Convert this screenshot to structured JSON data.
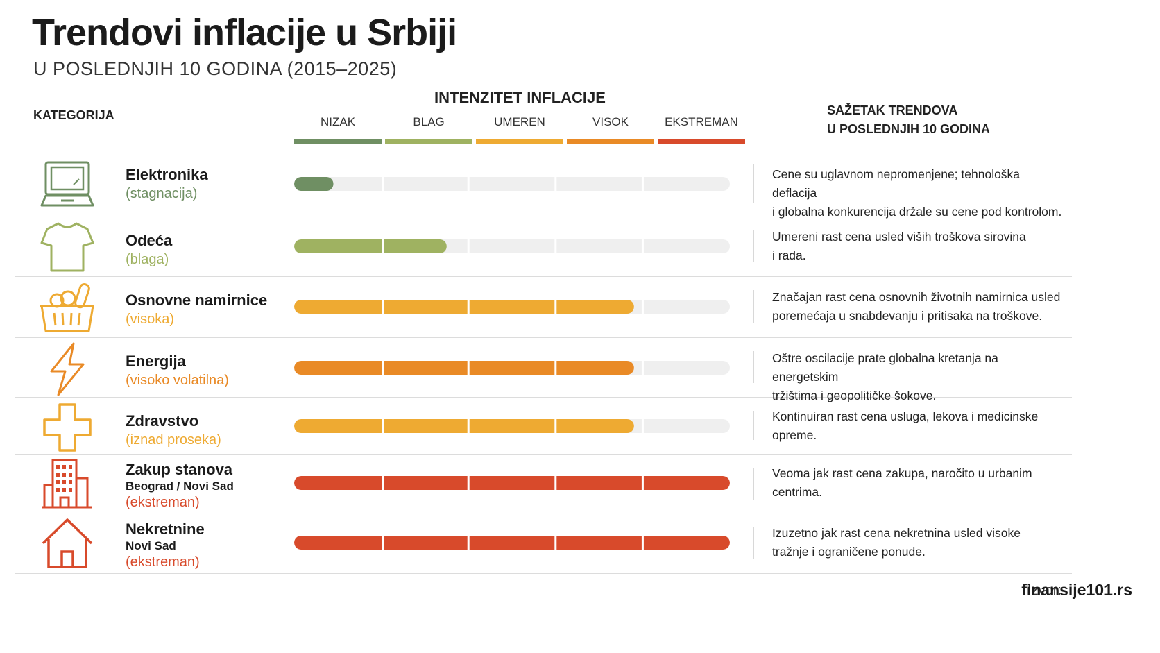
{
  "header": {
    "title": "Trendovi inflacije u Srbiji",
    "subtitle": "U POSLEDNJIH 10 GODINA (2015–2025)",
    "category_col": "KATEGORIJA",
    "intensity_col": "INTENZITET INFLACIJE",
    "summary_col_line1": "SAŽETAK TRENDOVA",
    "summary_col_line2": "U POSLEDNJIH 10 GODINA"
  },
  "chart_data": {
    "type": "bar",
    "scale_max": 5,
    "levels": [
      {
        "label": "NIZAK",
        "color": "#6f8f63"
      },
      {
        "label": "BLAG",
        "color": "#9fb261"
      },
      {
        "label": "UMEREN",
        "color": "#eeaa32"
      },
      {
        "label": "VISOK",
        "color": "#e98a26"
      },
      {
        "label": "EKSTREMAN",
        "color": "#d84a2b"
      }
    ],
    "rows": [
      {
        "name": "Elektronika",
        "sub": "",
        "level_text": "(stagnacija)",
        "color": "#6f8f63",
        "icon": "laptop-icon",
        "value": 0.45,
        "desc": [
          "Cene su uglavnom nepromenjene; tehnološka deflacija",
          "i globalna konkurencija držale su cene pod kontrolom."
        ]
      },
      {
        "name": "Odeća",
        "sub": "",
        "level_text": "(blaga)",
        "color": "#9fb261",
        "icon": "tshirt-icon",
        "value": 1.75,
        "desc": [
          "Umereni rast cena usled viših troškova sirovina",
          "i rada."
        ]
      },
      {
        "name": "Osnovne namirnice",
        "sub": "",
        "level_text": "(visoka)",
        "color": "#eeaa32",
        "icon": "grocery-basket-icon",
        "value": 3.9,
        "desc": [
          "Značajan rast cena osnovnih životnih namirnica usled",
          "poremećaja u snabdevanju i pritisaka na troškove."
        ]
      },
      {
        "name": "Energija",
        "sub": "",
        "level_text": "(visoko volatilna)",
        "color": "#e98a26",
        "icon": "lightning-icon",
        "value": 3.9,
        "desc": [
          "Oštre oscilacije prate globalna kretanja na energetskim",
          "tržištima i geopolitičke šokove."
        ]
      },
      {
        "name": "Zdravstvo",
        "sub": "",
        "level_text": "(iznad proseka)",
        "color": "#eeaa32",
        "icon": "medical-cross-icon",
        "value": 3.9,
        "desc": [
          "Kontinuiran rast cena usluga, lekova i medicinske",
          "opreme."
        ]
      },
      {
        "name": "Zakup stanova",
        "sub": "Beograd / Novi Sad",
        "level_text": "(ekstreman)",
        "color": "#d84a2b",
        "icon": "apartment-building-icon",
        "value": 5,
        "desc": [
          "Veoma jak rast cena zakupa, naročito u urbanim",
          "centrima."
        ]
      },
      {
        "name": "Nekretnine",
        "sub": "Novi Sad",
        "level_text": "(ekstreman)",
        "color": "#d84a2b",
        "icon": "house-icon",
        "value": 5,
        "desc": [
          "Izuzetno jak rast cena nekretnina usled visoke",
          "tražnje i ograničene ponude."
        ]
      }
    ]
  },
  "footer": {
    "source_label": "Izvor:",
    "source_site": "finansije101.rs"
  }
}
